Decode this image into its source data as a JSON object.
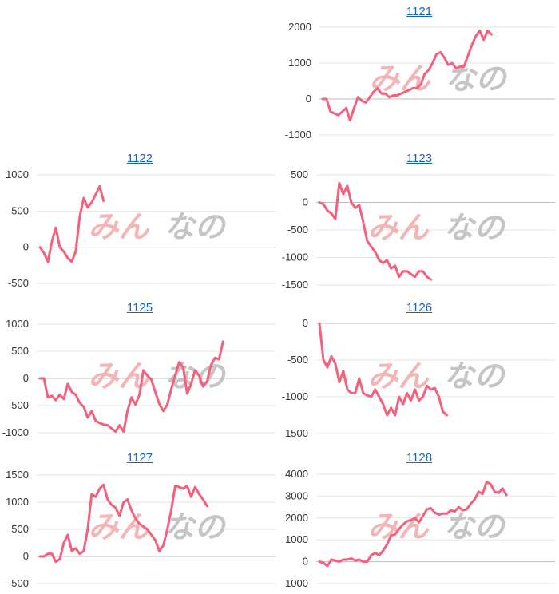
{
  "colors": {
    "line": "#f5617d",
    "grid": "#e6e6e6",
    "zero": "#bdbdbd",
    "wm_left": "#f1a9a9",
    "wm_right": "#bcbcbc",
    "link": "#1565c0"
  },
  "watermark": {
    "left": "みん",
    "right": "なの"
  },
  "chart_data": [
    {
      "type": "line",
      "title": "1121",
      "ylim": [
        -1000,
        2000
      ],
      "yticks": [
        2000,
        1000,
        0,
        -1000
      ],
      "grid": true,
      "values": [
        0,
        0,
        -350,
        -400,
        -450,
        -350,
        -250,
        -600,
        -250,
        50,
        -50,
        -100,
        50,
        200,
        300,
        150,
        150,
        50,
        100,
        100,
        150,
        200,
        250,
        300,
        300,
        400,
        700,
        800,
        1000,
        1250,
        1300,
        1150,
        950,
        1000,
        850,
        900,
        900,
        1200,
        1500,
        1750,
        1900,
        1650,
        1900,
        1800
      ]
    },
    {
      "type": "line",
      "title": "1122",
      "ylim": [
        -500,
        1000
      ],
      "yticks": [
        1000,
        500,
        0,
        -500
      ],
      "grid": true,
      "values": [
        0,
        -80,
        -200,
        80,
        270,
        0,
        -60,
        -150,
        -200,
        -60,
        420,
        680,
        550,
        620,
        730,
        840,
        640
      ]
    },
    {
      "type": "line",
      "title": "1123",
      "ylim": [
        -1500,
        500
      ],
      "yticks": [
        500,
        0,
        -500,
        -1000,
        -1500
      ],
      "grid": true,
      "values": [
        0,
        -30,
        -150,
        -200,
        -300,
        350,
        150,
        300,
        0,
        -100,
        -50,
        -350,
        -700,
        -800,
        -900,
        -1050,
        -1100,
        -1050,
        -1200,
        -1150,
        -1350,
        -1250,
        -1250,
        -1300,
        -1350,
        -1250,
        -1250,
        -1350,
        -1400
      ]
    },
    {
      "type": "line",
      "title": "1125",
      "ylim": [
        -1000,
        1000
      ],
      "yticks": [
        1000,
        500,
        0,
        -500,
        -1000
      ],
      "grid": true,
      "values": [
        0,
        0,
        -350,
        -320,
        -400,
        -300,
        -380,
        -100,
        -250,
        -300,
        -450,
        -520,
        -720,
        -600,
        -780,
        -820,
        -850,
        -860,
        -920,
        -980,
        -860,
        -980,
        -600,
        -350,
        -480,
        -300,
        150,
        50,
        -20,
        -250,
        -470,
        -600,
        -480,
        -200,
        50,
        300,
        200,
        -280,
        -100,
        150,
        50,
        -150,
        -60,
        250,
        380,
        350,
        680
      ]
    },
    {
      "type": "line",
      "title": "1126",
      "ylim": [
        -1500,
        0
      ],
      "yticks": [
        0,
        -500,
        -1000,
        -1500
      ],
      "grid": true,
      "values": [
        0,
        -500,
        -600,
        -450,
        -550,
        -800,
        -650,
        -900,
        -950,
        -950,
        -750,
        -950,
        -980,
        -1000,
        -900,
        -1000,
        -1100,
        -1250,
        -1150,
        -1250,
        -1000,
        -1100,
        -950,
        -1050,
        -900,
        -1050,
        -1000,
        -850,
        -900,
        -880,
        -1000,
        -1200,
        -1250
      ]
    },
    {
      "type": "line",
      "title": "1127",
      "ylim": [
        -500,
        1500
      ],
      "yticks": [
        1500,
        1000,
        500,
        0,
        -500
      ],
      "grid": true,
      "values": [
        0,
        0,
        50,
        50,
        -100,
        -50,
        250,
        400,
        100,
        150,
        50,
        100,
        500,
        1150,
        1100,
        1250,
        1320,
        1050,
        950,
        900,
        750,
        1000,
        1050,
        850,
        700,
        600,
        550,
        500,
        400,
        300,
        100,
        200,
        500,
        850,
        1300,
        1280,
        1250,
        1300,
        1100,
        1280,
        1150,
        1050,
        930
      ]
    },
    {
      "type": "line",
      "title": "1128",
      "ylim": [
        -1000,
        4000
      ],
      "yticks": [
        4000,
        3000,
        2000,
        1000,
        0,
        -1000
      ],
      "grid": true,
      "values": [
        0,
        -50,
        -200,
        100,
        50,
        0,
        100,
        100,
        150,
        50,
        100,
        0,
        0,
        300,
        400,
        300,
        500,
        800,
        1200,
        1250,
        1500,
        1700,
        1850,
        1900,
        2000,
        1800,
        2100,
        2400,
        2450,
        2250,
        2150,
        2200,
        2200,
        2350,
        2300,
        2500,
        2350,
        2400,
        2650,
        2850,
        3200,
        3100,
        3650,
        3550,
        3200,
        3150,
        3350,
        3050
      ]
    }
  ]
}
